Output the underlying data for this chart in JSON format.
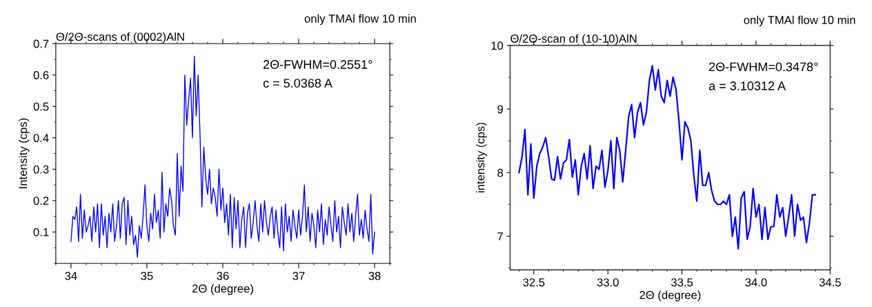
{
  "chart_data": [
    {
      "type": "line",
      "title": "Θ/2Θ-scans of (0002)AlN",
      "xlabel": "2Θ (degree)",
      "ylabel": "Intensity (cps)",
      "annotations": [
        "only TMAl flow 10 min",
        "2Θ-FWHM=0.2551°",
        "c = 5.0368 A"
      ],
      "x": [
        34.0,
        34.025,
        34.05,
        34.075,
        34.1,
        34.125,
        34.15,
        34.175,
        34.2,
        34.225,
        34.25,
        34.275,
        34.3,
        34.325,
        34.35,
        34.375,
        34.4,
        34.425,
        34.45,
        34.475,
        34.5,
        34.525,
        34.55,
        34.575,
        34.6,
        34.625,
        34.65,
        34.675,
        34.7,
        34.725,
        34.75,
        34.775,
        34.8,
        34.825,
        34.85,
        34.875,
        34.9,
        34.925,
        34.95,
        34.975,
        35.0,
        35.025,
        35.05,
        35.075,
        35.1,
        35.125,
        35.15,
        35.175,
        35.2,
        35.225,
        35.25,
        35.275,
        35.3,
        35.325,
        35.35,
        35.375,
        35.4,
        35.425,
        35.45,
        35.475,
        35.5,
        35.525,
        35.55,
        35.575,
        35.6,
        35.625,
        35.65,
        35.675,
        35.7,
        35.725,
        35.75,
        35.775,
        35.8,
        35.825,
        35.85,
        35.875,
        35.9,
        35.925,
        35.95,
        35.975,
        36.0,
        36.025,
        36.05,
        36.075,
        36.1,
        36.125,
        36.15,
        36.175,
        36.2,
        36.225,
        36.25,
        36.275,
        36.3,
        36.325,
        36.35,
        36.375,
        36.4,
        36.425,
        36.45,
        36.475,
        36.5,
        36.525,
        36.55,
        36.575,
        36.6,
        36.625,
        36.65,
        36.675,
        36.7,
        36.725,
        36.75,
        36.775,
        36.8,
        36.825,
        36.85,
        36.875,
        36.9,
        36.925,
        36.95,
        36.975,
        37.0,
        37.025,
        37.05,
        37.075,
        37.1,
        37.125,
        37.15,
        37.175,
        37.2,
        37.225,
        37.25,
        37.275,
        37.3,
        37.325,
        37.35,
        37.375,
        37.4,
        37.425,
        37.45,
        37.475,
        37.5,
        37.525,
        37.55,
        37.575,
        37.6,
        37.625,
        37.65,
        37.675,
        37.7,
        37.725,
        37.75,
        37.775,
        37.8,
        37.825,
        37.85,
        37.875,
        37.9,
        37.925,
        37.95,
        37.975,
        38.0
      ],
      "series": [
        {
          "color": "#0000ff",
          "values": [
            0.07,
            0.15,
            0.14,
            0.18,
            0.07,
            0.22,
            0.08,
            0.17,
            0.1,
            0.12,
            0.15,
            0.07,
            0.18,
            0.1,
            0.19,
            0.05,
            0.19,
            0.09,
            0.15,
            0.05,
            0.16,
            0.1,
            0.19,
            0.07,
            0.12,
            0.2,
            0.08,
            0.19,
            0.21,
            0.06,
            0.2,
            0.09,
            0.15,
            0.06,
            0.09,
            0.02,
            0.12,
            0.08,
            0.15,
            0.25,
            0.12,
            0.07,
            0.16,
            0.11,
            0.22,
            0.13,
            0.17,
            0.08,
            0.29,
            0.1,
            0.19,
            0.15,
            0.24,
            0.2,
            0.12,
            0.09,
            0.35,
            0.15,
            0.31,
            0.23,
            0.6,
            0.44,
            0.52,
            0.59,
            0.4,
            0.66,
            0.47,
            0.6,
            0.41,
            0.18,
            0.37,
            0.27,
            0.22,
            0.3,
            0.19,
            0.24,
            0.21,
            0.15,
            0.3,
            0.17,
            0.24,
            0.13,
            0.19,
            0.09,
            0.22,
            0.05,
            0.21,
            0.11,
            0.2,
            0.05,
            0.14,
            0.18,
            0.05,
            0.16,
            0.19,
            0.08,
            0.13,
            0.2,
            0.12,
            0.07,
            0.19,
            0.1,
            0.2,
            0.13,
            0.09,
            0.15,
            0.18,
            0.08,
            0.17,
            0.1,
            0.05,
            0.18,
            0.04,
            0.19,
            0.1,
            0.15,
            0.07,
            0.17,
            0.12,
            0.08,
            0.17,
            0.09,
            0.15,
            0.25,
            0.1,
            0.18,
            0.07,
            0.16,
            0.12,
            0.05,
            0.17,
            0.1,
            0.19,
            0.06,
            0.14,
            0.09,
            0.18,
            0.12,
            0.07,
            0.2,
            0.1,
            0.15,
            0.05,
            0.18,
            0.13,
            0.09,
            0.19,
            0.1,
            0.16,
            0.07,
            0.15,
            0.22,
            0.09,
            0.14,
            0.08,
            0.17,
            0.11,
            0.07,
            0.22,
            0.03,
            0.1
          ]
        }
      ],
      "xlim": [
        33.8,
        38.2
      ],
      "xticks": [
        34,
        35,
        36,
        37,
        38
      ],
      "ylim": [
        0,
        0.7
      ],
      "yticks": [
        0.1,
        0.2,
        0.3,
        0.4,
        0.5,
        0.6,
        0.7
      ],
      "grid": false,
      "legend": false
    },
    {
      "type": "line",
      "title": "Θ/2Θ-scan of (10-10)AlN",
      "xlabel": "2Θ (degree)",
      "ylabel": "intensity (cps)",
      "annotations": [
        "only TMAl flow 10 min",
        "2Θ-FWHM=0.3478°",
        "a = 3.10312 A"
      ],
      "x": [
        32.4,
        32.42,
        32.44,
        32.46,
        32.48,
        32.5,
        32.52,
        32.54,
        32.56,
        32.58,
        32.6,
        32.62,
        32.64,
        32.66,
        32.68,
        32.7,
        32.72,
        32.74,
        32.76,
        32.78,
        32.8,
        32.82,
        32.84,
        32.86,
        32.88,
        32.9,
        32.92,
        32.94,
        32.96,
        32.98,
        33.0,
        33.02,
        33.04,
        33.06,
        33.08,
        33.1,
        33.12,
        33.14,
        33.16,
        33.18,
        33.2,
        33.22,
        33.24,
        33.26,
        33.28,
        33.3,
        33.32,
        33.34,
        33.36,
        33.38,
        33.4,
        33.42,
        33.44,
        33.46,
        33.48,
        33.5,
        33.52,
        33.54,
        33.56,
        33.58,
        33.6,
        33.62,
        33.64,
        33.66,
        33.68,
        33.7,
        33.72,
        33.74,
        33.76,
        33.78,
        33.8,
        33.82,
        33.84,
        33.86,
        33.88,
        33.9,
        33.92,
        33.94,
        33.96,
        33.98,
        34.0,
        34.02,
        34.04,
        34.06,
        34.08,
        34.1,
        34.12,
        34.14,
        34.16,
        34.18,
        34.2,
        34.22,
        34.24,
        34.26,
        34.28,
        34.3,
        34.32,
        34.34,
        34.36,
        34.38,
        34.4
      ],
      "series": [
        {
          "color": "#0000ff",
          "values": [
            8.0,
            8.24,
            8.68,
            7.65,
            8.45,
            7.6,
            8.1,
            8.3,
            8.4,
            8.55,
            8.25,
            7.9,
            7.88,
            8.25,
            7.9,
            8.15,
            8.2,
            8.52,
            7.93,
            8.2,
            7.65,
            8.1,
            8.3,
            7.9,
            8.42,
            7.75,
            8.1,
            8.05,
            8.35,
            7.77,
            8.03,
            8.5,
            7.75,
            8.55,
            8.35,
            7.85,
            8.35,
            8.88,
            9.07,
            8.55,
            8.95,
            9.1,
            8.75,
            8.95,
            9.45,
            9.68,
            9.3,
            9.62,
            9.2,
            9.1,
            9.45,
            9.2,
            9.5,
            9.3,
            8.8,
            8.2,
            8.8,
            8.7,
            8.5,
            7.95,
            7.55,
            8.35,
            7.8,
            7.8,
            8.0,
            7.72,
            7.55,
            7.5,
            7.5,
            7.55,
            7.5,
            7.65,
            7.0,
            7.3,
            6.8,
            7.6,
            7.7,
            6.95,
            7.15,
            7.75,
            7.3,
            7.5,
            6.95,
            7.45,
            6.95,
            7.15,
            7.15,
            7.65,
            7.3,
            7.45,
            7.0,
            7.3,
            7.65,
            7.0,
            7.5,
            7.25,
            7.3,
            6.9,
            7.2,
            7.65,
            7.65
          ]
        }
      ],
      "xlim": [
        32.34,
        34.5
      ],
      "xticks": [
        32.5,
        {
          "value": 33.0,
          "label": "33.0"
        },
        33.5,
        {
          "value": 34.0,
          "label": "34.0"
        },
        34.5
      ],
      "ylim": [
        6.47,
        10.0
      ],
      "yticks": [
        7,
        8,
        9,
        10
      ],
      "grid": false,
      "legend": false
    }
  ]
}
